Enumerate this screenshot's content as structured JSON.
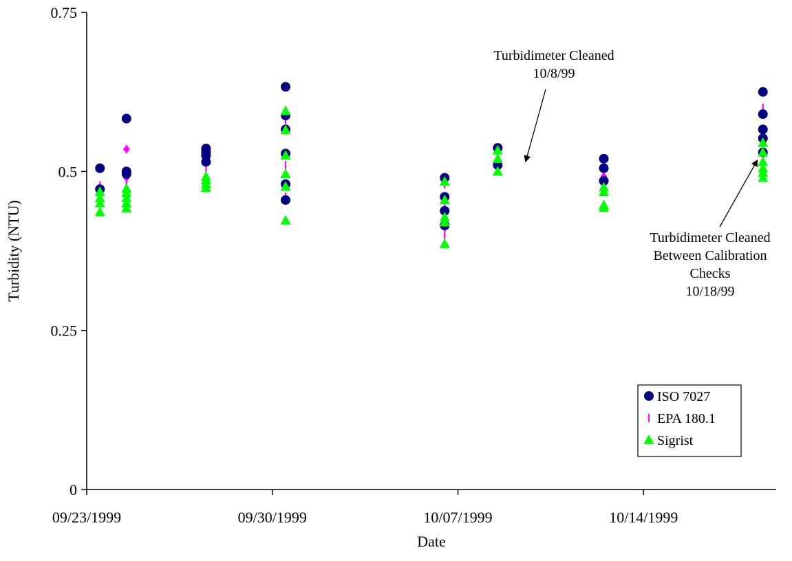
{
  "chart_data": {
    "type": "scatter",
    "title": "",
    "xlabel": "Date",
    "ylabel": "Turbidity (NTU)",
    "x_axis_type": "date",
    "xlim": [
      "1999-09-23",
      "1999-10-19"
    ],
    "x_ticks": [
      {
        "date": "1999-09-23",
        "label": "09/23/1999"
      },
      {
        "date": "1999-09-30",
        "label": "09/30/1999"
      },
      {
        "date": "1999-10-07",
        "label": "10/07/1999"
      },
      {
        "date": "1999-10-14",
        "label": "10/14/1999"
      }
    ],
    "ylim": [
      0,
      0.75
    ],
    "y_ticks": [
      {
        "value": 0,
        "label": "0"
      },
      {
        "value": 0.25,
        "label": "0.25"
      },
      {
        "value": 0.5,
        "label": "0.5"
      },
      {
        "value": 0.75,
        "label": "0.75"
      }
    ],
    "grid": false,
    "legend_position": "bottom-right",
    "series": [
      {
        "name": "ISO 7027",
        "marker": "circle",
        "color": "#000080",
        "points": [
          [
            "1999-09-23T12:00",
            0.505
          ],
          [
            "1999-09-23T12:00",
            0.472
          ],
          [
            "1999-09-24T12:00",
            0.583
          ],
          [
            "1999-09-24T12:00",
            0.5
          ],
          [
            "1999-09-24T12:00",
            0.496
          ],
          [
            "1999-09-27T12:00",
            0.536
          ],
          [
            "1999-09-27T12:00",
            0.53
          ],
          [
            "1999-09-27T12:00",
            0.525
          ],
          [
            "1999-09-27T12:00",
            0.515
          ],
          [
            "1999-09-30T12:00",
            0.633
          ],
          [
            "1999-09-30T12:00",
            0.588
          ],
          [
            "1999-09-30T12:00",
            0.566
          ],
          [
            "1999-09-30T12:00",
            0.528
          ],
          [
            "1999-09-30T12:00",
            0.48
          ],
          [
            "1999-09-30T12:00",
            0.455
          ],
          [
            "1999-10-06T12:00",
            0.49
          ],
          [
            "1999-10-06T12:00",
            0.46
          ],
          [
            "1999-10-06T12:00",
            0.438
          ],
          [
            "1999-10-06T12:00",
            0.415
          ],
          [
            "1999-10-08T12:00",
            0.537
          ],
          [
            "1999-10-08T12:00",
            0.51
          ],
          [
            "1999-10-12T12:00",
            0.52
          ],
          [
            "1999-10-12T12:00",
            0.505
          ],
          [
            "1999-10-12T12:00",
            0.485
          ],
          [
            "1999-10-18T12:00",
            0.625
          ],
          [
            "1999-10-18T12:00",
            0.59
          ],
          [
            "1999-10-18T12:00",
            0.566
          ],
          [
            "1999-10-18T12:00",
            0.552
          ],
          [
            "1999-10-18T12:00",
            0.53
          ]
        ]
      },
      {
        "name": "EPA 180.1",
        "marker": "dash",
        "color": "#ff00ff",
        "points": [
          [
            "1999-09-23T12:00",
            0.478
          ],
          [
            "1999-09-23T12:00",
            0.463
          ],
          [
            "1999-09-24T12:00",
            0.535
          ],
          [
            "1999-09-24T12:00",
            0.49
          ],
          [
            "1999-09-24T12:00",
            0.485
          ],
          [
            "1999-09-24T12:00",
            0.478
          ],
          [
            "1999-09-27T12:00",
            0.535
          ],
          [
            "1999-09-27T12:00",
            0.505
          ],
          [
            "1999-09-30T12:00",
            0.58
          ],
          [
            "1999-09-30T12:00",
            0.51
          ],
          [
            "1999-09-30T12:00",
            0.46
          ],
          [
            "1999-10-06T12:00",
            0.48
          ],
          [
            "1999-10-06T12:00",
            0.45
          ],
          [
            "1999-10-06T12:00",
            0.405
          ],
          [
            "1999-10-06T12:00",
            0.395
          ],
          [
            "1999-10-08T12:00",
            0.53
          ],
          [
            "1999-10-08T12:00",
            0.505
          ],
          [
            "1999-10-12T12:00",
            0.5
          ],
          [
            "1999-10-12T12:00",
            0.492
          ],
          [
            "1999-10-18T12:00",
            0.6
          ],
          [
            "1999-10-18T12:00",
            0.56
          ],
          [
            "1999-10-18T12:00",
            0.54
          ]
        ]
      },
      {
        "name": "Sigrist",
        "marker": "triangle",
        "color": "#00ff00",
        "points": [
          [
            "1999-09-23T12:00",
            0.468
          ],
          [
            "1999-09-23T12:00",
            0.458
          ],
          [
            "1999-09-23T12:00",
            0.45
          ],
          [
            "1999-09-23T12:00",
            0.436
          ],
          [
            "1999-09-24T12:00",
            0.473
          ],
          [
            "1999-09-24T12:00",
            0.466
          ],
          [
            "1999-09-24T12:00",
            0.458
          ],
          [
            "1999-09-24T12:00",
            0.45
          ],
          [
            "1999-09-24T12:00",
            0.442
          ],
          [
            "1999-09-27T12:00",
            0.492
          ],
          [
            "1999-09-27T12:00",
            0.486
          ],
          [
            "1999-09-27T12:00",
            0.48
          ],
          [
            "1999-09-27T12:00",
            0.474
          ],
          [
            "1999-09-30T12:00",
            0.595
          ],
          [
            "1999-09-30T12:00",
            0.565
          ],
          [
            "1999-09-30T12:00",
            0.525
          ],
          [
            "1999-09-30T12:00",
            0.496
          ],
          [
            "1999-09-30T12:00",
            0.476
          ],
          [
            "1999-09-30T12:00",
            0.423
          ],
          [
            "1999-10-06T12:00",
            0.484
          ],
          [
            "1999-10-06T12:00",
            0.455
          ],
          [
            "1999-10-06T12:00",
            0.428
          ],
          [
            "1999-10-06T12:00",
            0.42
          ],
          [
            "1999-10-06T12:00",
            0.386
          ],
          [
            "1999-10-08T12:00",
            0.533
          ],
          [
            "1999-10-08T12:00",
            0.52
          ],
          [
            "1999-10-08T12:00",
            0.5
          ],
          [
            "1999-10-12T12:00",
            0.475
          ],
          [
            "1999-10-12T12:00",
            0.468
          ],
          [
            "1999-10-12T12:00",
            0.447
          ],
          [
            "1999-10-12T12:00",
            0.443
          ],
          [
            "1999-10-18T12:00",
            0.545
          ],
          [
            "1999-10-18T12:00",
            0.53
          ],
          [
            "1999-10-18T12:00",
            0.515
          ],
          [
            "1999-10-18T12:00",
            0.505
          ],
          [
            "1999-10-18T12:00",
            0.498
          ],
          [
            "1999-10-18T12:00",
            0.49
          ]
        ]
      }
    ],
    "annotations": [
      {
        "lines": [
          "Turbidimeter Cleaned",
          "10/8/99"
        ],
        "points_to": [
          "1999-10-09T12:00",
          0.5
        ]
      },
      {
        "lines": [
          "Turbidimeter Cleaned",
          "Between Calibration",
          "Checks",
          "10/18/99"
        ],
        "points_to": [
          "1999-10-18T12:00",
          0.52
        ]
      }
    ]
  }
}
